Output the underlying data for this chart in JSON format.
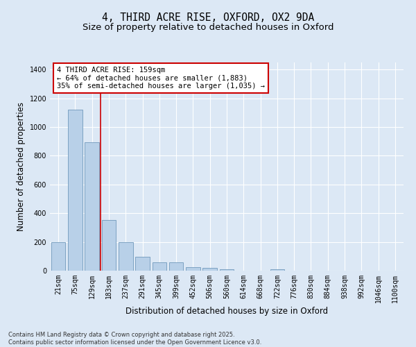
{
  "title_line1": "4, THIRD ACRE RISE, OXFORD, OX2 9DA",
  "title_line2": "Size of property relative to detached houses in Oxford",
  "xlabel": "Distribution of detached houses by size in Oxford",
  "ylabel": "Number of detached properties",
  "categories": [
    "21sqm",
    "75sqm",
    "129sqm",
    "183sqm",
    "237sqm",
    "291sqm",
    "345sqm",
    "399sqm",
    "452sqm",
    "506sqm",
    "560sqm",
    "614sqm",
    "668sqm",
    "722sqm",
    "776sqm",
    "830sqm",
    "884sqm",
    "938sqm",
    "992sqm",
    "1046sqm",
    "1100sqm"
  ],
  "values": [
    198,
    1120,
    893,
    355,
    198,
    95,
    58,
    58,
    25,
    18,
    12,
    0,
    0,
    10,
    0,
    0,
    0,
    0,
    0,
    0,
    0
  ],
  "bar_color": "#b8d0e8",
  "bar_edge_color": "#7099bb",
  "vline_color": "#cc0000",
  "vline_position": 2.5,
  "annotation_text": "4 THIRD ACRE RISE: 159sqm\n← 64% of detached houses are smaller (1,883)\n35% of semi-detached houses are larger (1,035) →",
  "annotation_box_color": "#ffffff",
  "annotation_box_edge": "#cc0000",
  "ylim": [
    0,
    1450
  ],
  "yticks": [
    0,
    200,
    400,
    600,
    800,
    1000,
    1200,
    1400
  ],
  "bg_color": "#dce8f5",
  "plot_bg_color": "#dce8f5",
  "footer_text": "Contains HM Land Registry data © Crown copyright and database right 2025.\nContains public sector information licensed under the Open Government Licence v3.0.",
  "title_fontsize": 10.5,
  "subtitle_fontsize": 9.5,
  "axis_label_fontsize": 8.5,
  "tick_fontsize": 7,
  "annotation_fontsize": 7.5,
  "footer_fontsize": 6
}
